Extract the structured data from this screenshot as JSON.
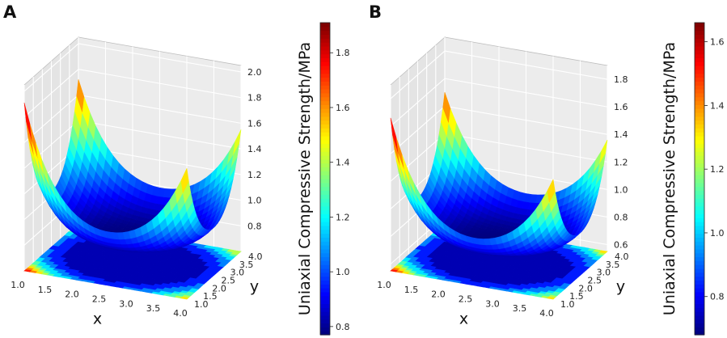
{
  "chart_data": [
    {
      "type": "surface3d",
      "panel_label": "A",
      "xlabel": "x",
      "ylabel": "y",
      "zlabel": "",
      "colorbar_label": "Uniaxial Compressive Strength/MPa",
      "x_ticks": [
        "1.0",
        "1.5",
        "2.0",
        "2.5",
        "3.0",
        "3.5",
        "4.0"
      ],
      "y_ticks": [
        "1.0",
        "1.5",
        "2.0",
        "2.5",
        "3.0",
        "3.5",
        "4.0"
      ],
      "z_ticks": [
        "0.8",
        "1.0",
        "1.2",
        "1.4",
        "1.6",
        "1.8",
        "2.0"
      ],
      "colorbar_ticks": [
        "0.8",
        "1.0",
        "1.2",
        "1.4",
        "1.6",
        "1.8"
      ],
      "xlim": [
        1.0,
        4.0
      ],
      "ylim": [
        1.0,
        4.0
      ],
      "zlim": [
        0.6,
        2.05
      ],
      "colorbar_range": [
        0.77,
        1.91
      ],
      "surface": {
        "center": [
          2.5,
          2.5
        ],
        "min_value": 0.77,
        "corner_values": {
          "x1_y1": 1.91,
          "x4_y1": 1.62,
          "x1_y4": 1.72,
          "x4_y4": 1.55
        }
      },
      "colormap": "jet",
      "contour_projection": "bottom"
    },
    {
      "type": "surface3d",
      "panel_label": "B",
      "xlabel": "x",
      "ylabel": "y",
      "zlabel": "",
      "colorbar_label": "Uniaxial Compressive Strength/MPa",
      "x_ticks": [
        "1.0",
        "1.5",
        "2.0",
        "2.5",
        "3.0",
        "3.5",
        "4.0"
      ],
      "y_ticks": [
        "1.0",
        "1.5",
        "2.0",
        "2.5",
        "3.0",
        "3.5",
        "4.0"
      ],
      "z_ticks": [
        "0.6",
        "0.8",
        "1.0",
        "1.2",
        "1.4",
        "1.6",
        "1.8"
      ],
      "colorbar_ticks": [
        "0.8",
        "1.0",
        "1.2",
        "1.4",
        "1.6"
      ],
      "xlim": [
        1.0,
        4.0
      ],
      "ylim": [
        1.0,
        4.0
      ],
      "zlim": [
        0.55,
        1.9
      ],
      "colorbar_range": [
        0.68,
        1.66
      ],
      "surface": {
        "center": [
          2.5,
          2.5
        ],
        "min_value": 0.68,
        "corner_values": {
          "x1_y1": 1.66,
          "x4_y1": 1.42,
          "x1_y4": 1.5,
          "x4_y4": 1.36
        }
      },
      "colormap": "jet",
      "contour_projection": "bottom"
    }
  ]
}
